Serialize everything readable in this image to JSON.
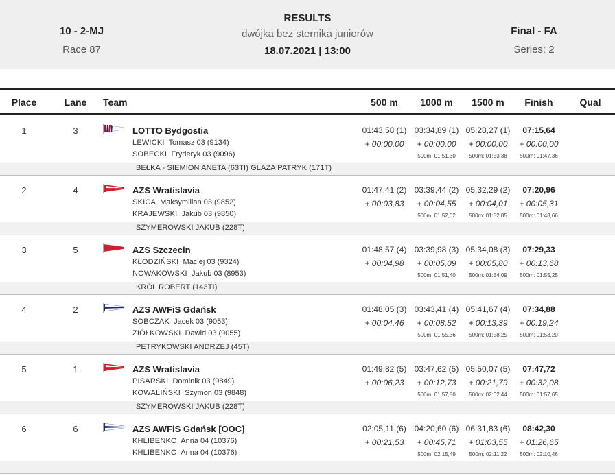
{
  "header": {
    "event_code": "10 - 2-MJ",
    "race": "Race 87",
    "title": "RESULTS",
    "subtitle": "dwójka bez sternika juniorów",
    "date_time": "18.07.2021 | 13:00",
    "final": "Final - FA",
    "series": "Series: 2"
  },
  "columns": {
    "place": "Place",
    "lane": "Lane",
    "team": "Team",
    "m500": "500 m",
    "m1000": "1000 m",
    "m1500": "1500 m",
    "finish": "Finish",
    "qual": "Qual"
  },
  "rows": [
    {
      "place": "1",
      "lane": "3",
      "flag": "stripes-white-flag-icon",
      "crew": "LOTTO Bydgostia",
      "rowers": [
        {
          "surname": "LEWICKI",
          "rest": "Tomasz 03 (9134)"
        },
        {
          "surname": "SOBECKI",
          "rest": "Fryderyk 03 (9096)"
        }
      ],
      "coach": "BEŁKA - SIEMION ANETA (63TI) GLAZA PATRYK (171T)",
      "splits": [
        {
          "time": "01:43,58 (1)",
          "diff": "+ 00:00,00",
          "rate": ""
        },
        {
          "time": "03:34,89 (1)",
          "diff": "+ 00:00,00",
          "rate": "500m: 01:51,30"
        },
        {
          "time": "05:28,27 (1)",
          "diff": "+ 00:00,00",
          "rate": "500m: 01:53,38"
        },
        {
          "time": "07:15,64",
          "diff": "+ 00:00,00",
          "rate": "500m: 01:47,36"
        }
      ]
    },
    {
      "place": "2",
      "lane": "4",
      "flag": "white-red-flag-icon",
      "crew": "AZS Wratislavia",
      "rowers": [
        {
          "surname": "SKICA",
          "rest": "Maksymilian 03 (9852)"
        },
        {
          "surname": "KRAJEWSKI",
          "rest": "Jakub 03 (9850)"
        }
      ],
      "coach": "SZYMEROWSKI JAKUB (228T)",
      "splits": [
        {
          "time": "01:47,41 (2)",
          "diff": "+ 00:03,83",
          "rate": ""
        },
        {
          "time": "03:39,44 (2)",
          "diff": "+ 00:04,55",
          "rate": "500m: 01:52,02"
        },
        {
          "time": "05:32,29 (2)",
          "diff": "+ 00:04,01",
          "rate": "500m: 01:52,85"
        },
        {
          "time": "07:20,96",
          "diff": "+ 00:05,31",
          "rate": "500m: 01:48,66"
        }
      ]
    },
    {
      "place": "3",
      "lane": "5",
      "flag": "red-white-flag-icon",
      "crew": "AZS Szczecin",
      "rowers": [
        {
          "surname": "KŁODZIŃSKI",
          "rest": "Maciej 03 (9324)"
        },
        {
          "surname": "NOWAKOWSKI",
          "rest": "Jakub 03 (8953)"
        }
      ],
      "coach": "KRÓL ROBERT (143TI)",
      "splits": [
        {
          "time": "01:48,57 (4)",
          "diff": "+ 00:04,98",
          "rate": ""
        },
        {
          "time": "03:39,98 (3)",
          "diff": "+ 00:05,09",
          "rate": "500m: 01:51,40"
        },
        {
          "time": "05:34,08 (3)",
          "diff": "+ 00:05,80",
          "rate": "500m: 01:54,09"
        },
        {
          "time": "07:29,33",
          "diff": "+ 00:13,68",
          "rate": "500m: 01:55,25"
        }
      ]
    },
    {
      "place": "4",
      "lane": "2",
      "flag": "white-navy-flag-icon",
      "crew": "AZS AWFiS Gdańsk",
      "rowers": [
        {
          "surname": "SOBCZAK",
          "rest": "Jacek 03 (9053)"
        },
        {
          "surname": "ZIÓŁKOWSKI",
          "rest": "Dawid 03 (9055)"
        }
      ],
      "coach": "PETRYKOWSKI ANDRZEJ (45T)",
      "splits": [
        {
          "time": "01:48,05 (3)",
          "diff": "+ 00:04,46",
          "rate": ""
        },
        {
          "time": "03:43,41 (4)",
          "diff": "+ 00:08,52",
          "rate": "500m: 01:55,36"
        },
        {
          "time": "05:41,67 (4)",
          "diff": "+ 00:13,39",
          "rate": "500m: 01:58,25"
        },
        {
          "time": "07:34,88",
          "diff": "+ 00:19,24",
          "rate": "500m: 01:53,20"
        }
      ]
    },
    {
      "place": "5",
      "lane": "1",
      "flag": "white-red-flag-icon",
      "crew": "AZS Wratislavia",
      "rowers": [
        {
          "surname": "PISARSKI",
          "rest": "Dominik 03 (9849)"
        },
        {
          "surname": "KOWALIŃSKI",
          "rest": "Szymon 03 (9848)"
        }
      ],
      "coach": "SZYMEROWSKI JAKUB (228T)",
      "splits": [
        {
          "time": "01:49,82 (5)",
          "diff": "+ 00:06,23",
          "rate": ""
        },
        {
          "time": "03:47,62 (5)",
          "diff": "+ 00:12,73",
          "rate": "500m: 01:57,80"
        },
        {
          "time": "05:50,07 (5)",
          "diff": "+ 00:21,79",
          "rate": "500m: 02:02,44"
        },
        {
          "time": "07:47,72",
          "diff": "+ 00:32,08",
          "rate": "500m: 01:57,65"
        }
      ]
    },
    {
      "place": "6",
      "lane": "6",
      "flag": "white-navy-flag-icon",
      "crew": "AZS AWFiS Gdańsk [OOC]",
      "rowers": [
        {
          "surname": "KHLIBENKO",
          "rest": "Anna 04 (10376)"
        },
        {
          "surname": "KHLIBENKO",
          "rest": "Anna 04 (10376)"
        }
      ],
      "coach": "",
      "splits": [
        {
          "time": "02:05,11 (6)",
          "diff": "+ 00:21,53",
          "rate": ""
        },
        {
          "time": "04:20,60 (6)",
          "diff": "+ 00:45,71",
          "rate": "500m: 02:15,49"
        },
        {
          "time": "06:31,83 (6)",
          "diff": "+ 01:03,55",
          "rate": "500m: 02:11,22"
        },
        {
          "time": "08:42,30",
          "diff": "+ 01:26,65",
          "rate": "500m: 02:10,46"
        }
      ]
    }
  ]
}
